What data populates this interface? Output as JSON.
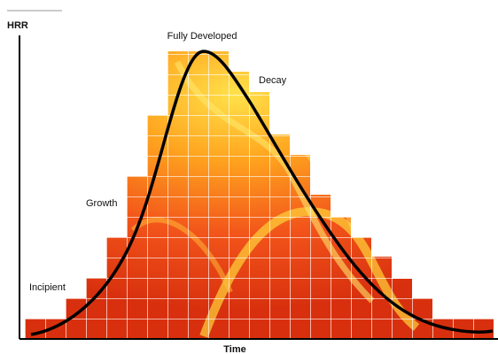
{
  "axes": {
    "y_label": "HRR",
    "x_label": "Time"
  },
  "stages": [
    {
      "label": "Incipient"
    },
    {
      "label": "Growth"
    },
    {
      "label": "Fully Developed"
    },
    {
      "label": "Decay"
    }
  ]
}
